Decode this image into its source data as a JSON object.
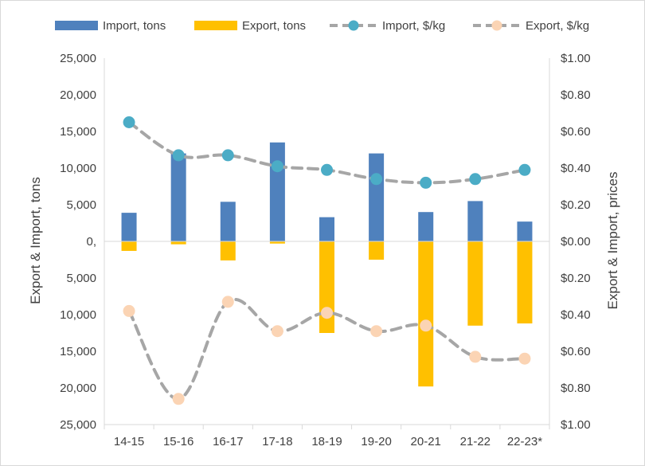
{
  "chart_data": {
    "type": "bar",
    "categories": [
      "14-15",
      "15-16",
      "16-17",
      "17-18",
      "18-19",
      "19-20",
      "20-21",
      "21-22",
      "22-23*"
    ],
    "series": [
      {
        "name": "Import, tons",
        "kind": "bar",
        "axis": "left",
        "color": "#4F81BD",
        "values": [
          3900,
          12000,
          5400,
          13500,
          3300,
          12000,
          4000,
          5500,
          2700
        ]
      },
      {
        "name": "Export, tons",
        "kind": "bar",
        "axis": "left",
        "color": "#FFC000",
        "values": [
          -1300,
          -400,
          -2600,
          -300,
          -12500,
          -2500,
          -19800,
          -11500,
          -11200
        ]
      },
      {
        "name": "Import, $/kg",
        "kind": "line",
        "axis": "right",
        "color": "#4BACC6",
        "values": [
          0.65,
          0.47,
          0.47,
          0.41,
          0.39,
          0.34,
          0.32,
          0.34,
          0.39
        ]
      },
      {
        "name": "Export, $/kg",
        "kind": "line",
        "axis": "right",
        "color": "#FBD4B4",
        "values": [
          -0.38,
          -0.86,
          -0.33,
          -0.49,
          -0.39,
          -0.49,
          -0.46,
          -0.63,
          -0.64
        ]
      }
    ],
    "left_axis": {
      "label": "Export & Import, tons",
      "range": [
        -25000,
        25000
      ],
      "ticks": [
        25000,
        20000,
        15000,
        10000,
        5000,
        0,
        -5000,
        -10000,
        -15000,
        -20000,
        -25000
      ],
      "tick_labels": [
        "25,000",
        "20,000",
        "15,000",
        "10,000",
        "5,000",
        "0,",
        "5,000",
        "10,000",
        "15,000",
        "20,000",
        "25,000"
      ]
    },
    "right_axis": {
      "label": "Export & Import, prices",
      "range": [
        -1.0,
        1.0
      ],
      "ticks": [
        1.0,
        0.8,
        0.6,
        0.4,
        0.2,
        0,
        -0.2,
        -0.4,
        -0.6,
        -0.8,
        -1.0
      ],
      "tick_labels": [
        "$1.00",
        "$0.80",
        "$0.60",
        "$0.40",
        "$0.20",
        "$0.00",
        "$0.20",
        "$0.40",
        "$0.60",
        "$0.80",
        "$1.00"
      ]
    },
    "grid": false,
    "legend_position": "top"
  }
}
